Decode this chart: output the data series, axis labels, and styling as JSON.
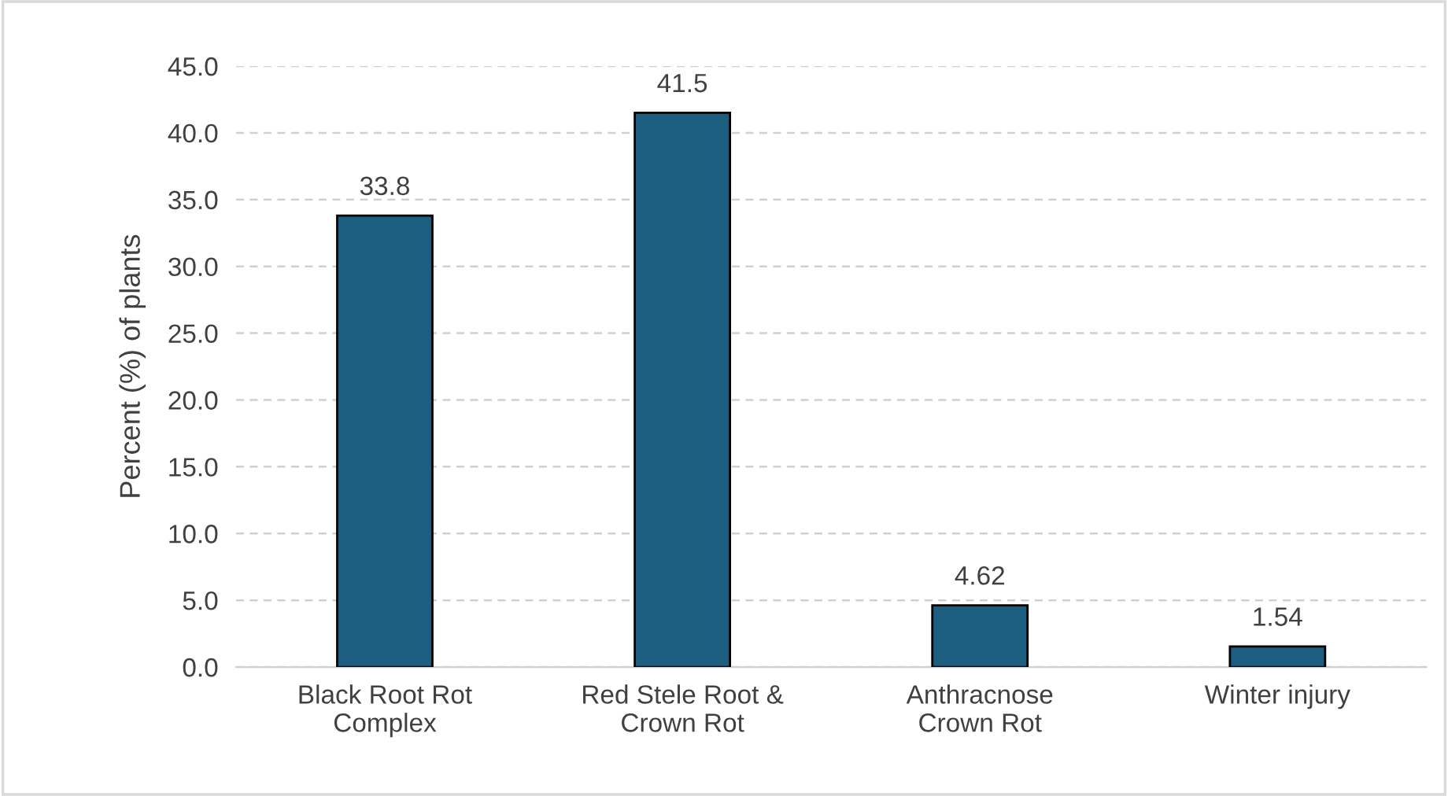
{
  "chart_data": {
    "type": "bar",
    "ylabel": "Percent (%) of plants",
    "categories": [
      "Black Root Rot\nComplex",
      "Red Stele Root &\nCrown Rot",
      "Anthracnose\nCrown Rot",
      "Winter injury"
    ],
    "values": [
      33.8,
      41.5,
      4.62,
      1.54
    ],
    "color": "#1b5e7f",
    "ylim": [
      0,
      45
    ],
    "yticks": [
      {
        "value": 0,
        "label": "0.0"
      },
      {
        "value": 5,
        "label": "5.0"
      },
      {
        "value": 10,
        "label": "10.0"
      },
      {
        "value": 15,
        "label": "15.0"
      },
      {
        "value": 20,
        "label": "20.0"
      },
      {
        "value": 25,
        "label": "25.0"
      },
      {
        "value": 30,
        "label": "30.0"
      },
      {
        "value": 35,
        "label": "35.0"
      },
      {
        "value": 40,
        "label": "40.0"
      },
      {
        "value": 45,
        "label": "45.0"
      }
    ],
    "grid": "y",
    "legend": false,
    "data_labels": true
  }
}
